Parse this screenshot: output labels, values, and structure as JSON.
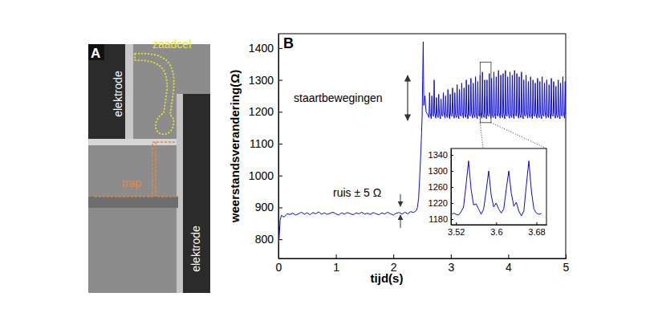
{
  "panel_a": {
    "label": "A",
    "electrode_top": "elektrode",
    "electrode_bottom": "elektrode",
    "cell": "zaadcel",
    "trap": "trap"
  },
  "chart_data": [
    {
      "type": "line",
      "panel_label": "B",
      "x_label": "tijd(s)",
      "y_label": "weerstandsverandering(Ω)",
      "annotations": [
        "ruis ± 5 Ω",
        "staartbewegingen"
      ],
      "color": "#0a0ae0",
      "xlim": [
        0,
        5
      ],
      "xticks": [
        0,
        1,
        2,
        3,
        4,
        5
      ],
      "ylim": [
        740,
        1445
      ],
      "yticks": [
        800,
        900,
        1000,
        1100,
        1200,
        1300,
        1400
      ],
      "x": [
        0,
        0.01,
        0.03,
        0.05,
        0.1,
        0.15,
        0.2,
        0.25,
        0.3,
        0.35,
        0.4,
        0.45,
        0.5,
        0.55,
        0.6,
        0.65,
        0.7,
        0.75,
        0.8,
        0.85,
        0.9,
        0.95,
        1,
        1.05,
        1.1,
        1.15,
        1.2,
        1.25,
        1.3,
        1.35,
        1.4,
        1.45,
        1.5,
        1.55,
        1.6,
        1.65,
        1.7,
        1.75,
        1.8,
        1.85,
        1.9,
        1.95,
        2,
        2.05,
        2.1,
        2.15,
        2.2,
        2.25,
        2.3,
        2.35,
        2.4,
        2.42,
        2.44,
        2.46,
        2.48,
        2.5,
        2.51,
        2.52,
        2.53,
        2.55,
        2.57,
        2.6,
        2.62,
        2.63,
        2.64,
        2.66,
        2.67,
        2.68,
        2.7,
        2.71,
        2.72,
        2.74,
        2.75,
        2.76,
        2.78,
        2.79,
        2.8,
        2.82,
        2.83,
        2.84,
        2.86,
        2.87,
        2.88,
        2.9,
        2.91,
        2.92,
        2.94,
        2.95,
        2.96,
        2.98,
        2.99,
        3,
        3.02,
        3.03,
        3.04,
        3.06,
        3.07,
        3.08,
        3.1,
        3.11,
        3.12,
        3.14,
        3.15,
        3.16,
        3.18,
        3.19,
        3.2,
        3.22,
        3.23,
        3.24,
        3.26,
        3.27,
        3.28,
        3.3,
        3.31,
        3.32,
        3.34,
        3.35,
        3.36,
        3.38,
        3.39,
        3.4,
        3.42,
        3.43,
        3.44,
        3.46,
        3.47,
        3.48,
        3.5,
        3.51,
        3.52,
        3.54,
        3.55,
        3.56,
        3.58,
        3.59,
        3.6,
        3.62,
        3.63,
        3.64,
        3.66,
        3.67,
        3.68,
        3.7,
        3.71,
        3.72,
        3.74,
        3.75,
        3.76,
        3.78,
        3.79,
        3.8,
        3.82,
        3.83,
        3.84,
        3.86,
        3.87,
        3.88,
        3.9,
        3.91,
        3.92,
        3.94,
        3.95,
        3.96,
        3.98,
        3.99,
        4,
        4.02,
        4.03,
        4.04,
        4.06,
        4.07,
        4.08,
        4.1,
        4.11,
        4.12,
        4.14,
        4.15,
        4.16,
        4.18,
        4.19,
        4.2,
        4.22,
        4.23,
        4.24,
        4.26,
        4.27,
        4.28,
        4.3,
        4.31,
        4.32,
        4.34,
        4.35,
        4.36,
        4.38,
        4.39,
        4.4,
        4.42,
        4.43,
        4.44,
        4.46,
        4.47,
        4.48,
        4.5,
        4.51,
        4.52,
        4.54,
        4.55,
        4.56,
        4.58,
        4.59,
        4.6,
        4.62,
        4.63,
        4.64,
        4.66,
        4.67,
        4.68,
        4.7,
        4.71,
        4.72,
        4.74,
        4.75,
        4.76,
        4.78,
        4.79,
        4.8,
        4.82,
        4.83,
        4.84,
        4.86,
        4.87,
        4.88,
        4.9,
        4.91,
        4.92,
        4.94,
        4.95,
        4.96,
        4.98,
        4.99,
        5
      ],
      "values": [
        785,
        800,
        860,
        875,
        870,
        880,
        878,
        882,
        876,
        880,
        885,
        879,
        883,
        877,
        884,
        880,
        886,
        879,
        883,
        878,
        882,
        885,
        880,
        876,
        883,
        879,
        884,
        880,
        877,
        883,
        880,
        885,
        879,
        882,
        878,
        884,
        880,
        877,
        883,
        879,
        885,
        880,
        876,
        882,
        884,
        879,
        885,
        880,
        887,
        884,
        890,
        900,
        930,
        1000,
        1080,
        1180,
        1300,
        1420,
        1220,
        1250,
        1200,
        1190,
        1182,
        1260,
        1195,
        1178,
        1250,
        1190,
        1186,
        1300,
        1198,
        1180,
        1245,
        1192,
        1182,
        1255,
        1195,
        1178,
        1240,
        1190,
        1186,
        1260,
        1198,
        1180,
        1250,
        1192,
        1182,
        1270,
        1195,
        1178,
        1255,
        1190,
        1186,
        1275,
        1198,
        1180,
        1260,
        1192,
        1182,
        1285,
        1195,
        1178,
        1270,
        1190,
        1186,
        1290,
        1198,
        1180,
        1275,
        1192,
        1182,
        1300,
        1195,
        1178,
        1285,
        1190,
        1186,
        1305,
        1198,
        1180,
        1290,
        1192,
        1182,
        1310,
        1195,
        1178,
        1295,
        1190,
        1186,
        1315,
        1198,
        1180,
        1325,
        1192,
        1182,
        1300,
        1195,
        1178,
        1300,
        1190,
        1186,
        1320,
        1198,
        1180,
        1305,
        1192,
        1182,
        1325,
        1195,
        1178,
        1310,
        1190,
        1186,
        1330,
        1198,
        1180,
        1315,
        1192,
        1182,
        1320,
        1195,
        1178,
        1330,
        1190,
        1186,
        1310,
        1198,
        1180,
        1325,
        1192,
        1182,
        1315,
        1195,
        1178,
        1330,
        1190,
        1186,
        1320,
        1198,
        1180,
        1310,
        1192,
        1182,
        1325,
        1195,
        1178,
        1300,
        1190,
        1186,
        1315,
        1198,
        1180,
        1295,
        1192,
        1182,
        1310,
        1195,
        1178,
        1300,
        1190,
        1186,
        1290,
        1198,
        1180,
        1305,
        1192,
        1182,
        1295,
        1195,
        1178,
        1310,
        1190,
        1186,
        1290,
        1198,
        1180,
        1300,
        1192,
        1182,
        1285,
        1195,
        1178,
        1305,
        1190,
        1186,
        1295,
        1198,
        1180,
        1280,
        1192,
        1182,
        1300,
        1195,
        1178,
        1290,
        1190,
        1186,
        1310,
        1198,
        1180,
        1295,
        1192
      ]
    },
    {
      "type": "line",
      "color": "#0a0ae0",
      "xlim": [
        3.51,
        3.7
      ],
      "xticks": [
        3.52,
        3.6,
        3.68
      ],
      "ylim": [
        1166,
        1356
      ],
      "yticks": [
        1180,
        1220,
        1260,
        1300,
        1340
      ],
      "x": [
        3.51,
        3.515,
        3.52,
        3.525,
        3.53,
        3.535,
        3.54,
        3.545,
        3.55,
        3.555,
        3.56,
        3.565,
        3.57,
        3.575,
        3.58,
        3.585,
        3.59,
        3.595,
        3.6,
        3.605,
        3.61,
        3.615,
        3.62,
        3.625,
        3.63,
        3.635,
        3.64,
        3.645,
        3.65,
        3.655,
        3.66,
        3.665,
        3.67,
        3.675,
        3.68,
        3.685,
        3.69
      ],
      "values": [
        1190,
        1195,
        1192,
        1190,
        1198,
        1210,
        1265,
        1325,
        1255,
        1215,
        1218,
        1205,
        1192,
        1205,
        1250,
        1300,
        1240,
        1210,
        1220,
        1205,
        1195,
        1205,
        1255,
        1300,
        1245,
        1212,
        1222,
        1200,
        1188,
        1200,
        1265,
        1325,
        1250,
        1205,
        1195,
        1192,
        1194
      ]
    }
  ]
}
